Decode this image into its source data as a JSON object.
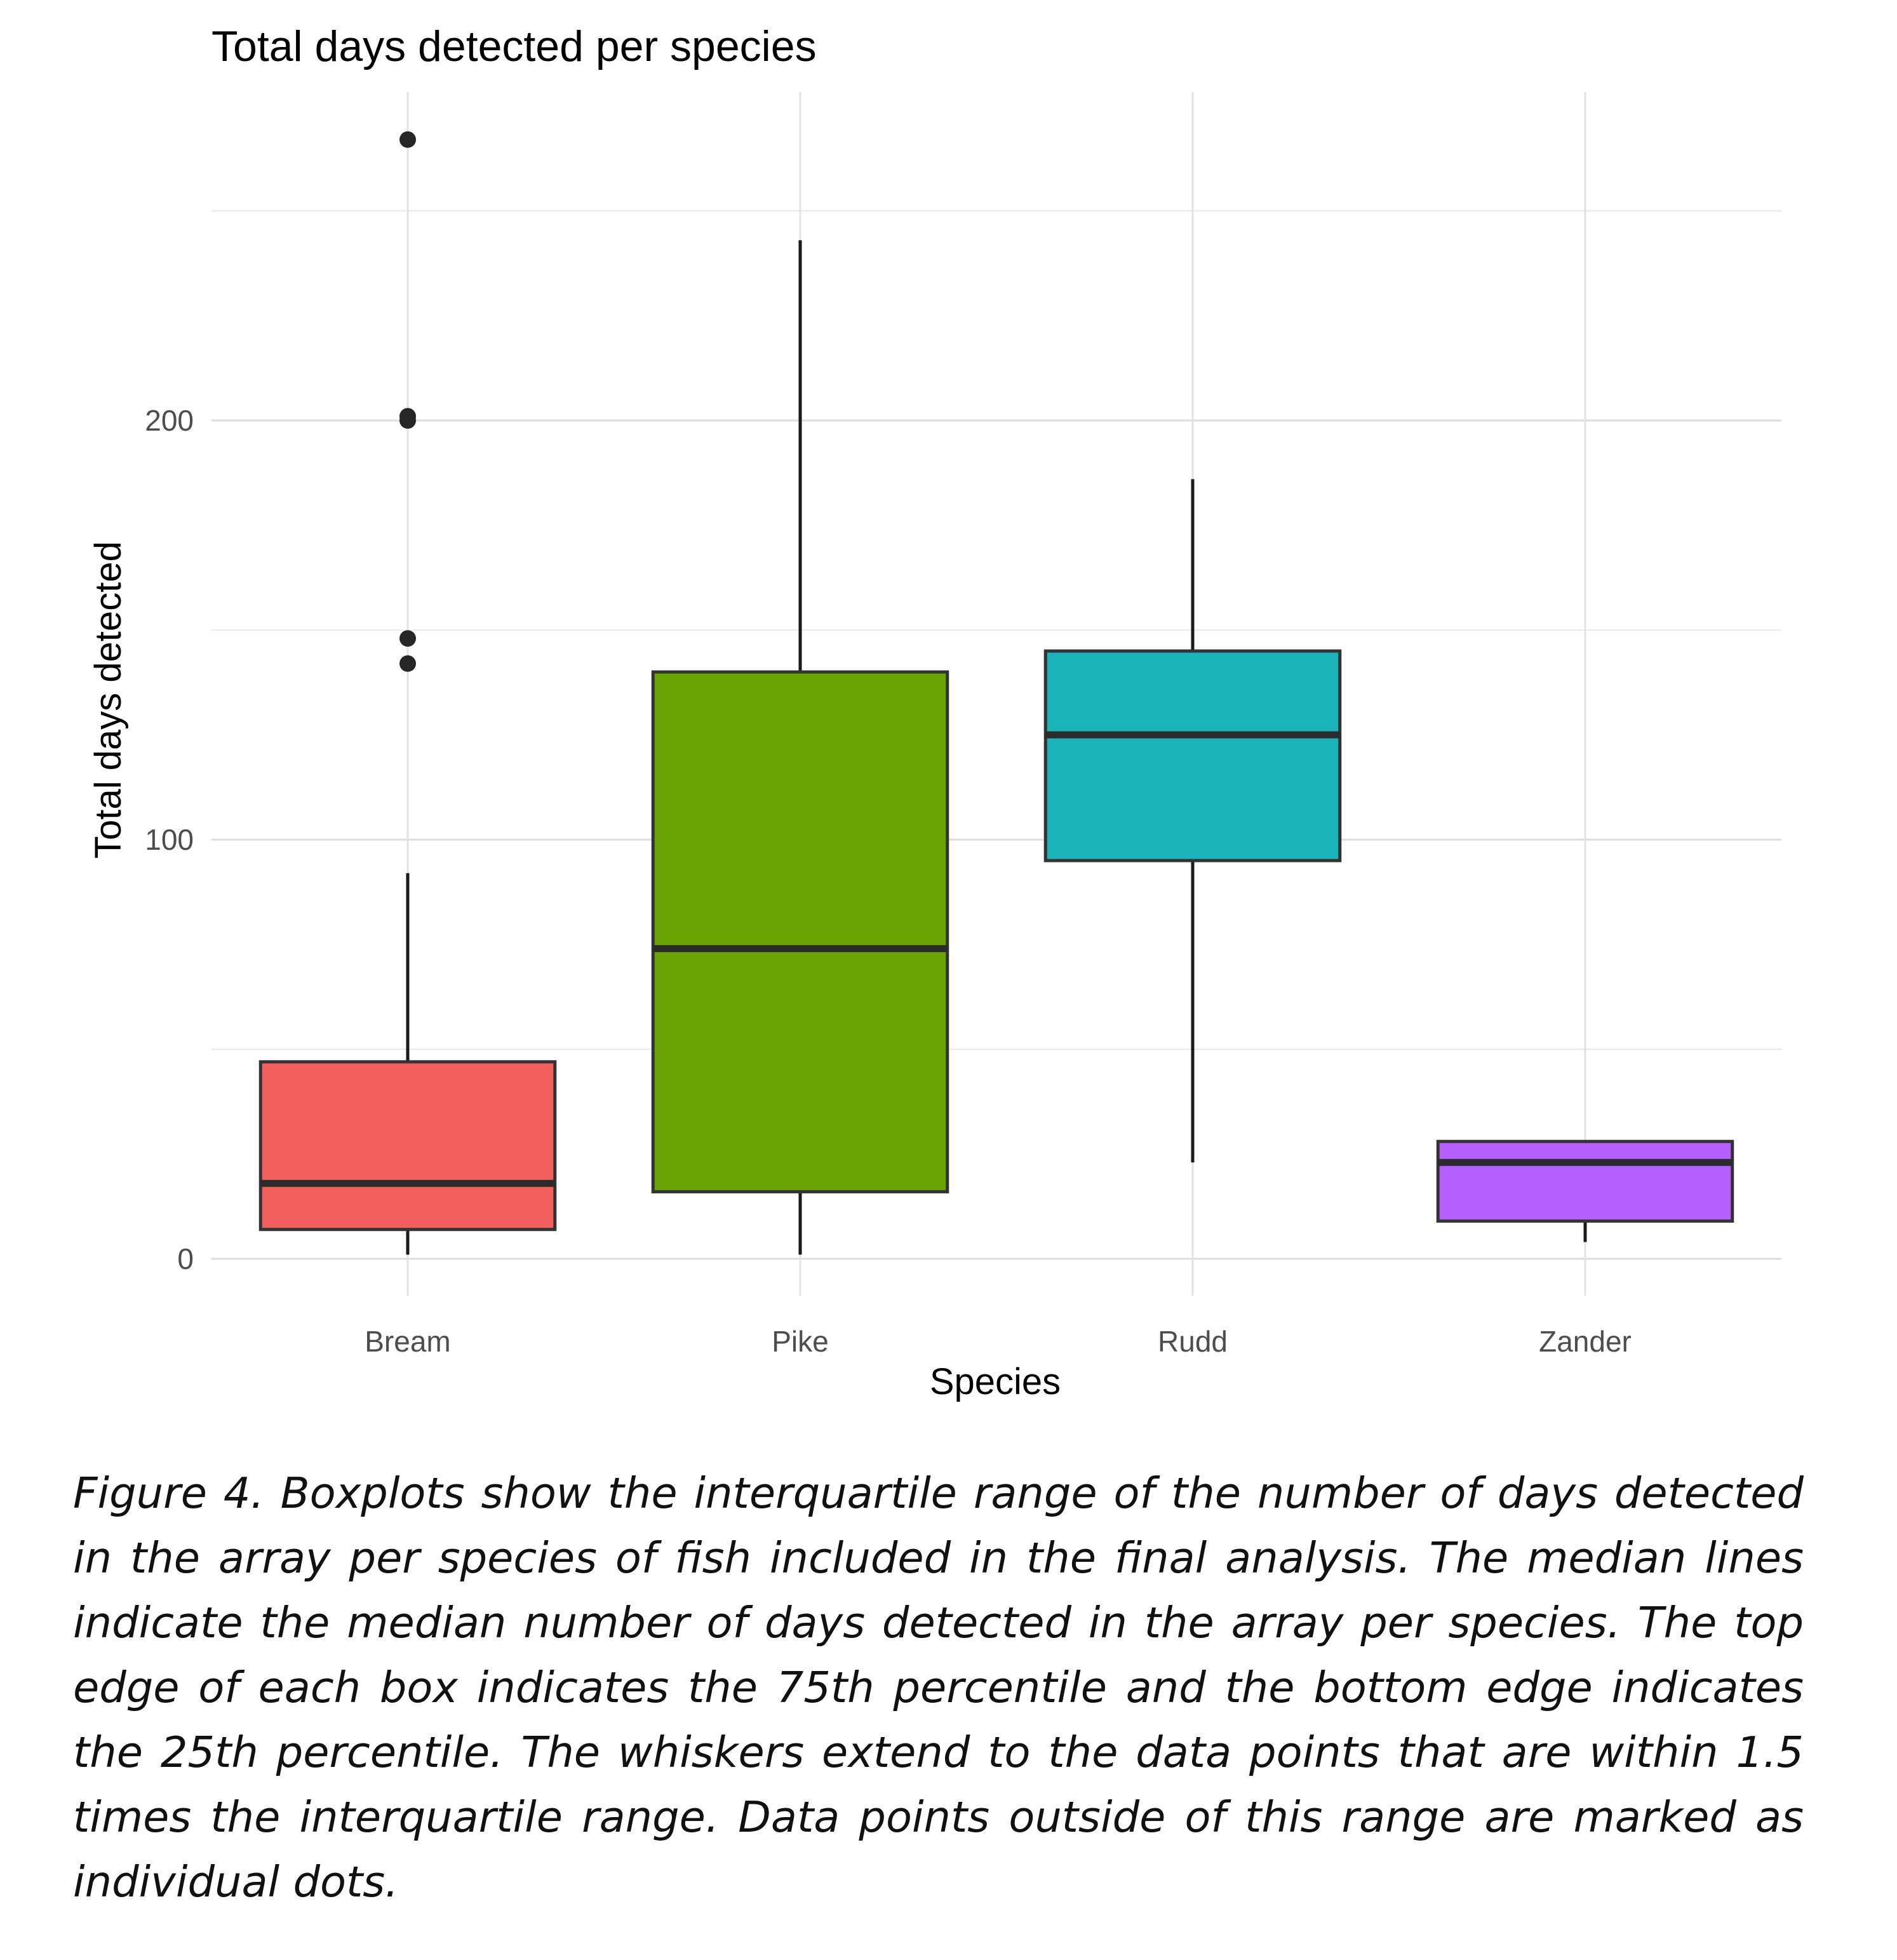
{
  "chart_data": {
    "type": "boxplot",
    "title": "Total days detected per species",
    "xlabel": "Species",
    "ylabel": "Total days detected",
    "ylim": [
      -10,
      280
    ],
    "yticks": [
      0,
      100,
      200
    ],
    "grid": true,
    "categories": [
      "Bream",
      "Pike",
      "Rudd",
      "Zander"
    ],
    "boxes": [
      {
        "category": "Bream",
        "color": "#F25F5C",
        "whisker_low": 1,
        "q1": 7,
        "median": 18,
        "q3": 47,
        "whisker_high": 92,
        "outliers": [
          142,
          148,
          200,
          201,
          267
        ]
      },
      {
        "category": "Pike",
        "color": "#6AA304",
        "whisker_low": 1,
        "q1": 16,
        "median": 74,
        "q3": 140,
        "whisker_high": 243,
        "outliers": []
      },
      {
        "category": "Rudd",
        "color": "#19B3B8",
        "whisker_low": 23,
        "q1": 95,
        "median": 125,
        "q3": 145,
        "whisker_high": 186,
        "outliers": []
      },
      {
        "category": "Zander",
        "color": "#B55FFF",
        "whisker_low": 4,
        "q1": 9,
        "median": 23,
        "q3": 28,
        "whisker_high": 28,
        "outliers": []
      }
    ]
  },
  "caption": "Figure 4. Boxplots show the interquartile range of the number of days detected in the array per species of fish included in the final analysis. The median lines indicate the median number of days detected in the array per species. The top edge of each box indicates the 75th percentile and the bottom edge indicates the 25th percentile. The whiskers extend to the data points that are within 1.5 times the interquartile range. Data points outside of this range are marked as individual dots."
}
